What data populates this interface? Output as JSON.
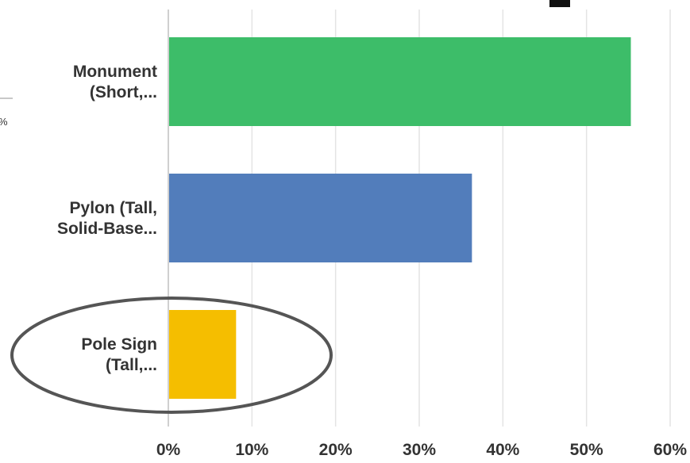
{
  "chart_data": {
    "type": "bar",
    "orientation": "horizontal",
    "categories": [
      [
        "Monument",
        "(Short,..."
      ],
      [
        "Pylon (Tall,",
        "Solid-Base..."
      ],
      [
        "Pole Sign",
        "(Tall,..."
      ]
    ],
    "values": [
      55.3,
      36.3,
      8.1
    ],
    "colors": [
      "#3dbd69",
      "#527dbb",
      "#f5be00"
    ],
    "x_ticks": [
      "0%",
      "10%",
      "20%",
      "30%",
      "40%",
      "50%",
      "60%"
    ],
    "xlim": [
      0,
      60
    ],
    "grid": true,
    "highlighted_category_index": 2,
    "highlight_color": "#555555"
  },
  "edge_fragment_text": "%"
}
